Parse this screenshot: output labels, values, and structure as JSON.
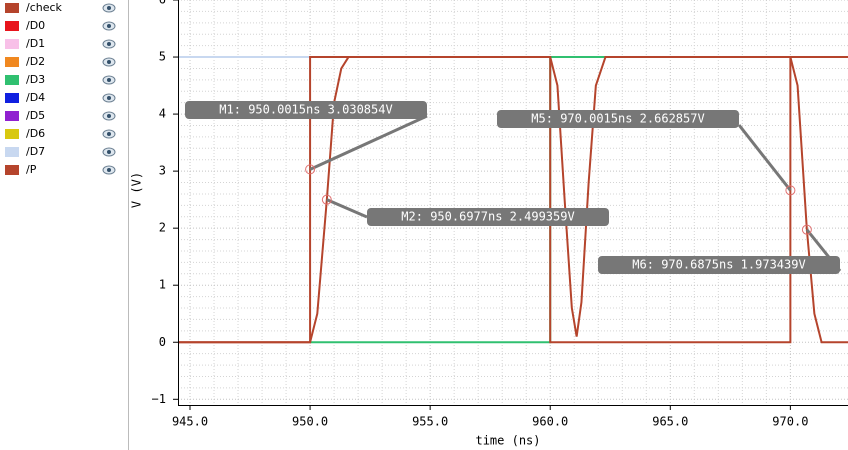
{
  "chart_data": {
    "type": "line",
    "x_label": "time (ns)",
    "y_label": "V (V)",
    "xlim": [
      944.5,
      972.4
    ],
    "ylim": [
      -1.1,
      6
    ],
    "xticks": [
      {
        "value": 945,
        "label": "945.0"
      },
      {
        "value": 950,
        "label": "950.0"
      },
      {
        "value": 955,
        "label": "955.0"
      },
      {
        "value": 960,
        "label": "960.0"
      },
      {
        "value": 965,
        "label": "965.0"
      },
      {
        "value": 970,
        "label": "970.0"
      }
    ],
    "yticks": [
      {
        "value": -1,
        "label": "−1"
      },
      0,
      1,
      2,
      3,
      4,
      5,
      6
    ],
    "grid": true,
    "series": [
      {
        "name": "/check",
        "color": "#b5442c",
        "x": [
          944.5,
          950,
          950.3,
          950.6977,
          951,
          951.3,
          951.6,
          960,
          960.3,
          960.6,
          960.9,
          961.1,
          961.3,
          961.6,
          961.9,
          962.3,
          970,
          970.3,
          970.6875,
          971,
          971.3,
          972.4
        ],
        "values": [
          0,
          0,
          0.5,
          2.499359,
          4.2,
          4.8,
          5,
          5,
          4.5,
          2.5,
          0.6,
          0.1,
          0.7,
          2.8,
          4.5,
          5,
          5,
          4.5,
          1.973439,
          0.5,
          0,
          0
        ]
      },
      {
        "name": "/D0",
        "color": "#e8141c"
      },
      {
        "name": "/D1",
        "color": "#f8c0e8"
      },
      {
        "name": "/D2",
        "color": "#f08820"
      },
      {
        "name": "/D3",
        "color": "#30c070",
        "x": [
          950,
          960,
          960,
          970
        ],
        "values": [
          0,
          0,
          5,
          5
        ]
      },
      {
        "name": "/D4",
        "color": "#1020e0"
      },
      {
        "name": "/D5",
        "color": "#9020d0"
      },
      {
        "name": "/D6",
        "color": "#d8c810"
      },
      {
        "name": "/D7",
        "color": "#c8d8f0",
        "x": [
          944.5,
          950
        ],
        "values": [
          5,
          5
        ]
      },
      {
        "name": "/P",
        "color": "#b5442c",
        "x": [
          944.5,
          950,
          950,
          960,
          960,
          970,
          970,
          972.4
        ],
        "values": [
          0,
          0,
          5,
          5,
          0,
          0,
          5,
          5
        ]
      }
    ],
    "markers": [
      {
        "label": "M1: 950.0015ns 3.030854V",
        "x": 950.0015,
        "y": 3.030854
      },
      {
        "label": "M2: 950.6977ns 2.499359V",
        "x": 950.6977,
        "y": 2.499359
      },
      {
        "label": "M5: 970.0015ns 2.662857V",
        "x": 970.0015,
        "y": 2.662857
      },
      {
        "label": "M6: 970.6875ns 1.973439V",
        "x": 970.6875,
        "y": 1.973439
      }
    ]
  }
}
